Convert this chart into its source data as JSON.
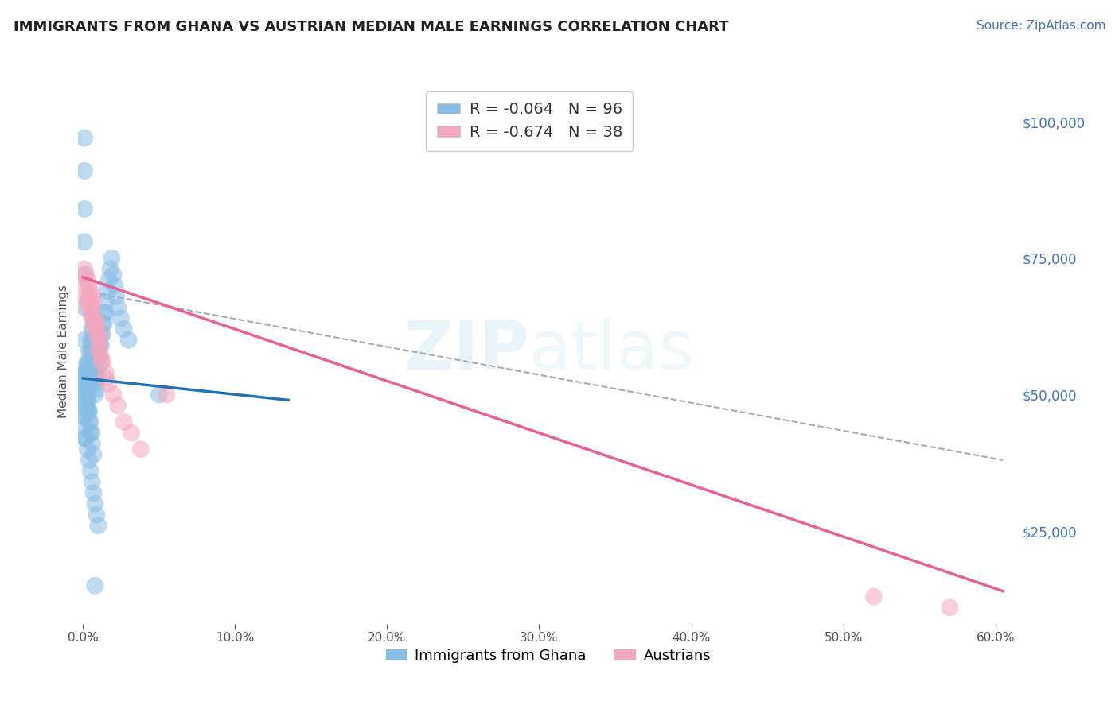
{
  "title": "IMMIGRANTS FROM GHANA VS AUSTRIAN MEDIAN MALE EARNINGS CORRELATION CHART",
  "source": "Source: ZipAtlas.com",
  "ylabel": "Median Male Earnings",
  "xlim": [
    -0.003,
    0.615
  ],
  "ylim": [
    8000,
    108000
  ],
  "yticks": [
    25000,
    50000,
    75000,
    100000
  ],
  "xticks": [
    0.0,
    0.1,
    0.2,
    0.3,
    0.4,
    0.5,
    0.6
  ],
  "blue_R": -0.064,
  "blue_N": 96,
  "pink_R": -0.674,
  "pink_N": 38,
  "blue_color": "#88bde6",
  "pink_color": "#f4a7be",
  "blue_line_color": "#2171b5",
  "pink_line_color": "#e8609a",
  "dashed_line_color": "#aaaaaa",
  "background_color": "#ffffff",
  "grid_color": "#cccccc",
  "title_color": "#222222",
  "source_color": "#4472c4",
  "accent_color": "#4472c4",
  "legend_label_blue": "Immigrants from Ghana",
  "legend_label_pink": "Austrians",
  "blue_scatter_x": [
    0.001,
    0.001,
    0.001,
    0.001,
    0.001,
    0.002,
    0.002,
    0.002,
    0.002,
    0.002,
    0.003,
    0.003,
    0.003,
    0.003,
    0.004,
    0.004,
    0.004,
    0.004,
    0.005,
    0.005,
    0.005,
    0.005,
    0.006,
    0.006,
    0.006,
    0.006,
    0.007,
    0.007,
    0.007,
    0.007,
    0.008,
    0.008,
    0.008,
    0.009,
    0.009,
    0.009,
    0.01,
    0.01,
    0.01,
    0.011,
    0.011,
    0.012,
    0.012,
    0.013,
    0.013,
    0.014,
    0.014,
    0.015,
    0.015,
    0.016,
    0.017,
    0.018,
    0.019,
    0.02,
    0.021,
    0.022,
    0.023,
    0.025,
    0.027,
    0.03,
    0.001,
    0.002,
    0.003,
    0.004,
    0.005,
    0.006,
    0.007,
    0.008,
    0.009,
    0.01,
    0.003,
    0.004,
    0.005,
    0.006,
    0.007,
    0.003,
    0.004,
    0.005,
    0.006,
    0.002,
    0.003,
    0.004,
    0.002,
    0.003,
    0.001,
    0.001,
    0.001,
    0.001,
    0.001,
    0.001,
    0.001,
    0.001,
    0.001,
    0.001,
    0.008,
    0.05
  ],
  "blue_scatter_y": [
    55000,
    52000,
    50000,
    48000,
    46000,
    54000,
    52000,
    50000,
    48000,
    46000,
    56000,
    54000,
    52000,
    50000,
    58000,
    56000,
    54000,
    52000,
    60000,
    58000,
    56000,
    54000,
    62000,
    60000,
    58000,
    56000,
    64000,
    62000,
    60000,
    58000,
    54000,
    52000,
    50000,
    55000,
    53000,
    51000,
    57000,
    55000,
    53000,
    59000,
    57000,
    61000,
    59000,
    63000,
    61000,
    65000,
    63000,
    67000,
    65000,
    69000,
    71000,
    73000,
    75000,
    72000,
    70000,
    68000,
    66000,
    64000,
    62000,
    60000,
    44000,
    42000,
    40000,
    38000,
    36000,
    34000,
    32000,
    30000,
    28000,
    26000,
    47000,
    45000,
    43000,
    41000,
    39000,
    49000,
    47000,
    45000,
    43000,
    51000,
    49000,
    47000,
    53000,
    51000,
    97000,
    91000,
    84000,
    78000,
    72000,
    66000,
    60000,
    54000,
    48000,
    42000,
    15000,
    50000
  ],
  "pink_scatter_x": [
    0.001,
    0.001,
    0.002,
    0.002,
    0.003,
    0.003,
    0.004,
    0.004,
    0.005,
    0.005,
    0.006,
    0.006,
    0.007,
    0.007,
    0.008,
    0.009,
    0.01,
    0.011,
    0.012,
    0.013,
    0.015,
    0.017,
    0.02,
    0.023,
    0.027,
    0.032,
    0.038,
    0.01,
    0.012,
    0.015,
    0.009,
    0.011,
    0.006,
    0.008,
    0.004,
    0.055,
    0.52,
    0.57
  ],
  "pink_scatter_y": [
    73000,
    70000,
    72000,
    68000,
    71000,
    67000,
    70000,
    66000,
    69000,
    65000,
    68000,
    64000,
    67000,
    63000,
    62000,
    61000,
    60000,
    59000,
    57000,
    56000,
    54000,
    52000,
    50000,
    48000,
    45000,
    43000,
    40000,
    58000,
    56000,
    53000,
    63000,
    61000,
    66000,
    64000,
    68000,
    50000,
    13000,
    11000
  ],
  "blue_line_x": [
    0.0,
    0.135
  ],
  "blue_line_y": [
    53000,
    49000
  ],
  "pink_line_x": [
    0.0,
    0.605
  ],
  "pink_line_y": [
    71500,
    14000
  ],
  "dashed_line_x": [
    0.0,
    0.605
  ],
  "dashed_line_y": [
    69000,
    38000
  ],
  "watermark_zip": "ZIP",
  "watermark_atlas": "atlas",
  "watermark_color": "#add8e6",
  "watermark_alpha": 0.28
}
